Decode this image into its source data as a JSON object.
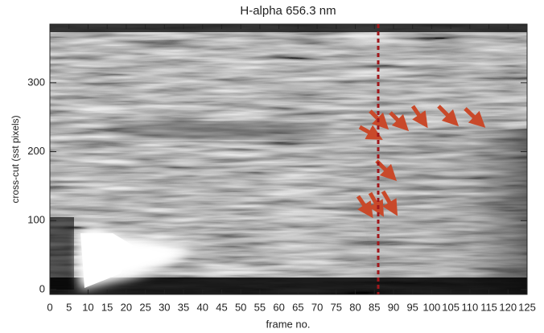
{
  "chart_data": {
    "type": "image",
    "title": "H-alpha 656.3 nm",
    "x_label": "frame no.",
    "y_label": "cross-cut (sst pixels)",
    "xlim": [
      0,
      125
    ],
    "xticks": [
      0,
      5,
      10,
      15,
      20,
      25,
      30,
      35,
      40,
      45,
      50,
      55,
      60,
      65,
      70,
      75,
      80,
      85,
      90,
      95,
      100,
      105,
      110,
      115,
      120,
      125
    ],
    "ylim": [
      -7,
      385
    ],
    "yticks": [
      0,
      100,
      200,
      300
    ],
    "vline": {
      "x": 86,
      "color": "#a0181c"
    },
    "arrow_color": "#c9492a"
  }
}
